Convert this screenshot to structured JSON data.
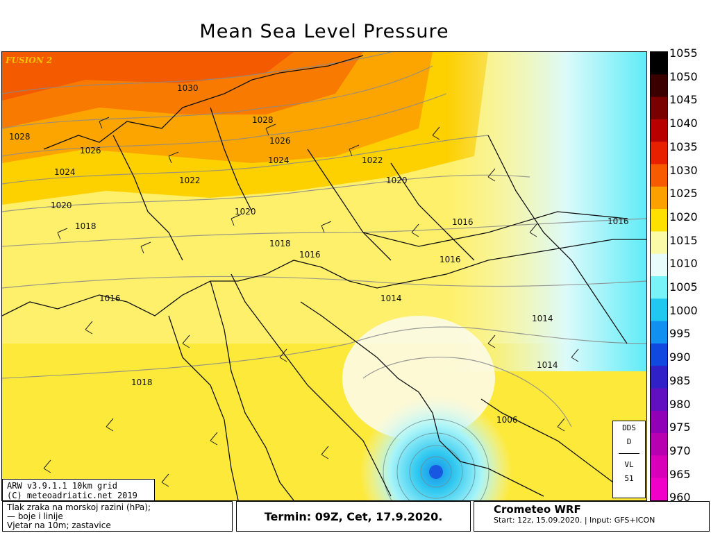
{
  "title": "Mean Sea Level Pressure",
  "fusion_label": "FUSION 2",
  "credit": {
    "model": "ARW v3.9.1.1 10km grid",
    "copyright": "(C) meteoadriatic.net 2019"
  },
  "dds_box": {
    "line1": "DDS",
    "line2": "D",
    "line3": "VL",
    "line4": "51"
  },
  "colorbar": {
    "labels": [
      "1055",
      "1050",
      "1045",
      "1040",
      "1035",
      "1030",
      "1025",
      "1020",
      "1015",
      "1010",
      "1005",
      "1000",
      "995",
      "990",
      "985",
      "980",
      "975",
      "970",
      "965",
      "960"
    ],
    "colors": [
      "#000000",
      "#3a0000",
      "#7a0000",
      "#b80000",
      "#e82000",
      "#f85a00",
      "#fca000",
      "#fde000",
      "#fafaa8",
      "#e8fcfc",
      "#78f4f8",
      "#20c8f0",
      "#1090f0",
      "#1048e0",
      "#3020c8",
      "#6010c0",
      "#9000b8",
      "#b800b0",
      "#d800b8",
      "#f000c8"
    ]
  },
  "isobars": [
    {
      "label": "1030"
    },
    {
      "label": "1028"
    },
    {
      "label": "1028"
    },
    {
      "label": "1026"
    },
    {
      "label": "1026"
    },
    {
      "label": "1024"
    },
    {
      "label": "1024"
    },
    {
      "label": "1022"
    },
    {
      "label": "1022"
    },
    {
      "label": "1020"
    },
    {
      "label": "1020"
    },
    {
      "label": "1020"
    },
    {
      "label": "1018"
    },
    {
      "label": "1018"
    },
    {
      "label": "1018"
    },
    {
      "label": "1016"
    },
    {
      "label": "1016"
    },
    {
      "label": "1016"
    },
    {
      "label": "1016"
    },
    {
      "label": "1016"
    },
    {
      "label": "1014"
    },
    {
      "label": "1014"
    },
    {
      "label": "1014"
    },
    {
      "label": "1006"
    }
  ],
  "bottom": {
    "left_line1": "Tlak zraka na morskoj razini (hPa);",
    "left_line2": "— boje i linije",
    "left_line3": "Vjetar na 10m; zastavice",
    "termin": "Termin: 09Z, Cet, 17.9.2020.",
    "model_name": "Crometeo WRF",
    "run_info": "Start: 12z, 15.09.2020. | Input: GFS+ICON"
  }
}
